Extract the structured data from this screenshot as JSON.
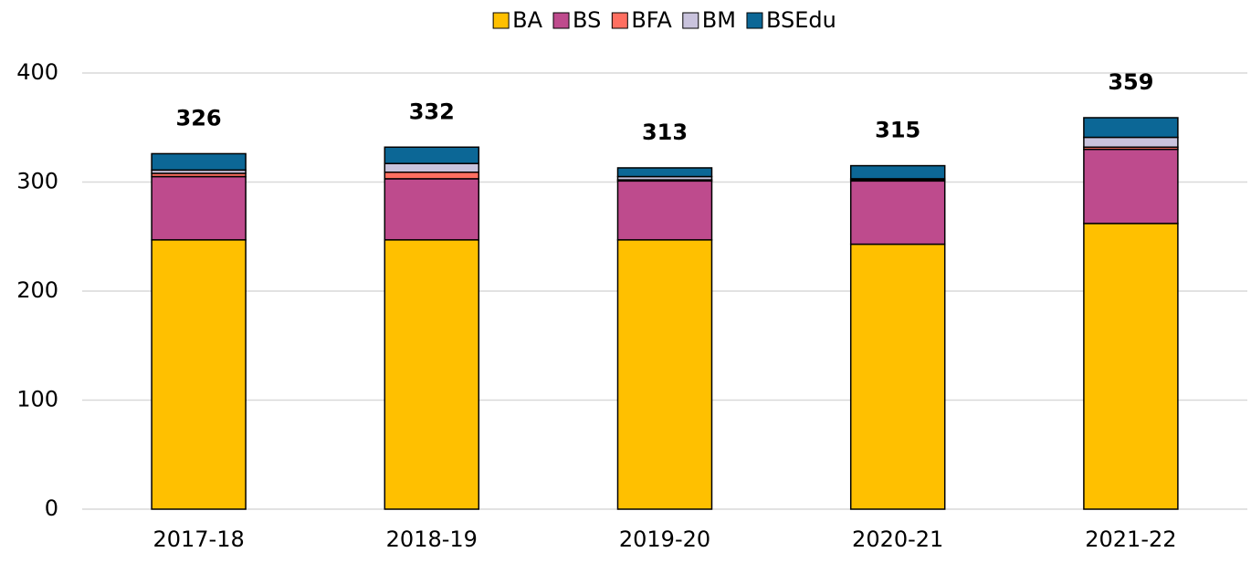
{
  "chart_data": {
    "type": "stacked-bar",
    "categories": [
      "2017-18",
      "2018-19",
      "2019-20",
      "2020-21",
      "2021-22"
    ],
    "series": [
      {
        "name": "BA",
        "color": "#ffc000",
        "values": [
          247,
          247,
          247,
          243,
          262
        ]
      },
      {
        "name": "BS",
        "color": "#be4b8d",
        "values": [
          58,
          56,
          54,
          58,
          68
        ]
      },
      {
        "name": "BFA",
        "color": "#ff6f61",
        "values": [
          3,
          6,
          1,
          1,
          2
        ]
      },
      {
        "name": "BM",
        "color": "#c9c3dd",
        "values": [
          3,
          8,
          3,
          1,
          9
        ]
      },
      {
        "name": "BSEdu",
        "color": "#0c6796",
        "values": [
          15,
          15,
          8,
          12,
          18
        ]
      }
    ],
    "totals": [
      326,
      332,
      313,
      315,
      359
    ],
    "ylim": [
      0,
      400
    ],
    "yticks": [
      0,
      100,
      200,
      300,
      400
    ],
    "grid": true,
    "legend": "top"
  }
}
